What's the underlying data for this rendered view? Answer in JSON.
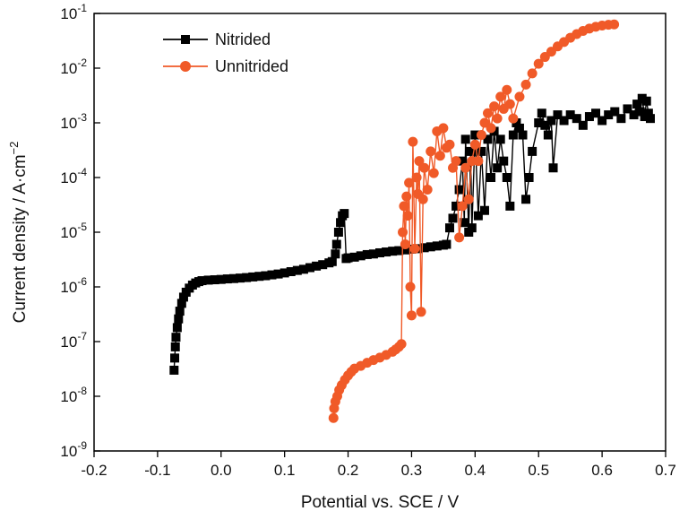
{
  "chart_data": {
    "type": "scatter",
    "xlabel": "Potential vs. SCE / V",
    "ylabel": "Current density / A·cm",
    "ylabel_sup": "−2",
    "xlim": [
      -0.2,
      0.7
    ],
    "ylim_log10": [
      -9,
      -1
    ],
    "yscale": "log",
    "grid": false,
    "legend_position": "top-left",
    "x_ticks": [
      "-0.2",
      "-0.1",
      "0.0",
      "0.1",
      "0.2",
      "0.3",
      "0.4",
      "0.5",
      "0.6",
      "0.7"
    ],
    "y_ticks": [
      {
        "base": "10",
        "exp": "-9"
      },
      {
        "base": "10",
        "exp": "-8"
      },
      {
        "base": "10",
        "exp": "-7"
      },
      {
        "base": "10",
        "exp": "-6"
      },
      {
        "base": "10",
        "exp": "-5"
      },
      {
        "base": "10",
        "exp": "-4"
      },
      {
        "base": "10",
        "exp": "-3"
      },
      {
        "base": "10",
        "exp": "-2"
      },
      {
        "base": "10",
        "exp": "-1"
      }
    ],
    "series": [
      {
        "name": "Nitrided",
        "color": "#000000",
        "marker": "square",
        "points": [
          [
            -0.074,
            3e-08
          ],
          [
            -0.073,
            5e-08
          ],
          [
            -0.072,
            8e-08
          ],
          [
            -0.071,
            1.2e-07
          ],
          [
            -0.069,
            1.8e-07
          ],
          [
            -0.067,
            2.6e-07
          ],
          [
            -0.065,
            3.6e-07
          ],
          [
            -0.062,
            5e-07
          ],
          [
            -0.059,
            6.5e-07
          ],
          [
            -0.055,
            8e-07
          ],
          [
            -0.05,
            9.5e-07
          ],
          [
            -0.045,
            1.08e-06
          ],
          [
            -0.04,
            1.18e-06
          ],
          [
            -0.035,
            1.25e-06
          ],
          [
            -0.03,
            1.3e-06
          ],
          [
            -0.02,
            1.33e-06
          ],
          [
            -0.01,
            1.35e-06
          ],
          [
            0.0,
            1.37e-06
          ],
          [
            0.01,
            1.4e-06
          ],
          [
            0.02,
            1.42e-06
          ],
          [
            0.03,
            1.45e-06
          ],
          [
            0.04,
            1.48e-06
          ],
          [
            0.05,
            1.52e-06
          ],
          [
            0.06,
            1.56e-06
          ],
          [
            0.07,
            1.6e-06
          ],
          [
            0.08,
            1.66e-06
          ],
          [
            0.09,
            1.72e-06
          ],
          [
            0.1,
            1.8e-06
          ],
          [
            0.11,
            1.9e-06
          ],
          [
            0.12,
            2e-06
          ],
          [
            0.13,
            2.1e-06
          ],
          [
            0.14,
            2.25e-06
          ],
          [
            0.15,
            2.4e-06
          ],
          [
            0.16,
            2.55e-06
          ],
          [
            0.17,
            2.75e-06
          ],
          [
            0.175,
            2.9e-06
          ],
          [
            0.18,
            4e-06
          ],
          [
            0.182,
            6e-06
          ],
          [
            0.185,
            1e-05
          ],
          [
            0.188,
            1.5e-05
          ],
          [
            0.191,
            2e-05
          ],
          [
            0.194,
            2.2e-05
          ],
          [
            0.197,
            3.3e-06
          ],
          [
            0.2,
            3.4e-06
          ],
          [
            0.21,
            3.5e-06
          ],
          [
            0.22,
            3.7e-06
          ],
          [
            0.23,
            3.9e-06
          ],
          [
            0.24,
            4e-06
          ],
          [
            0.25,
            4.2e-06
          ],
          [
            0.26,
            4.35e-06
          ],
          [
            0.27,
            4.5e-06
          ],
          [
            0.28,
            4.6e-06
          ],
          [
            0.29,
            4.75e-06
          ],
          [
            0.3,
            4.9e-06
          ],
          [
            0.31,
            5e-06
          ],
          [
            0.32,
            5.2e-06
          ],
          [
            0.33,
            5.4e-06
          ],
          [
            0.34,
            5.6e-06
          ],
          [
            0.35,
            5.8e-06
          ],
          [
            0.355,
            6e-06
          ],
          [
            0.36,
            1.2e-05
          ],
          [
            0.365,
            1.8e-05
          ],
          [
            0.37,
            3e-05
          ],
          [
            0.375,
            6e-05
          ],
          [
            0.38,
            0.0002
          ],
          [
            0.383,
            1.5e-05
          ],
          [
            0.385,
            0.0005
          ],
          [
            0.39,
            1e-05
          ],
          [
            0.393,
            0.0003
          ],
          [
            0.395,
            1.2e-05
          ],
          [
            0.4,
            0.0006
          ],
          [
            0.405,
            2e-05
          ],
          [
            0.41,
            0.0003
          ],
          [
            0.415,
            2.5e-05
          ],
          [
            0.42,
            0.0005
          ],
          [
            0.425,
            0.0001
          ],
          [
            0.43,
            0.0007
          ],
          [
            0.435,
            0.00015
          ],
          [
            0.44,
            0.0005
          ],
          [
            0.445,
            0.0002
          ],
          [
            0.45,
            0.0001
          ],
          [
            0.455,
            3e-05
          ],
          [
            0.46,
            0.0006
          ],
          [
            0.465,
            0.001
          ],
          [
            0.47,
            0.0008
          ],
          [
            0.475,
            0.0006
          ],
          [
            0.48,
            4e-05
          ],
          [
            0.485,
            0.0001
          ],
          [
            0.49,
            0.0003
          ],
          [
            0.5,
            0.001
          ],
          [
            0.505,
            0.0015
          ],
          [
            0.51,
            0.0009
          ],
          [
            0.515,
            0.0006
          ],
          [
            0.52,
            0.0011
          ],
          [
            0.523,
            0.00015
          ],
          [
            0.53,
            0.0014
          ],
          [
            0.54,
            0.0011
          ],
          [
            0.55,
            0.0014
          ],
          [
            0.56,
            0.0012
          ],
          [
            0.57,
            0.0009
          ],
          [
            0.58,
            0.0013
          ],
          [
            0.59,
            0.0015
          ],
          [
            0.6,
            0.0011
          ],
          [
            0.61,
            0.0014
          ],
          [
            0.62,
            0.0016
          ],
          [
            0.63,
            0.0012
          ],
          [
            0.64,
            0.0018
          ],
          [
            0.65,
            0.0014
          ],
          [
            0.655,
            0.0022
          ],
          [
            0.66,
            0.0016
          ],
          [
            0.663,
            0.0028
          ],
          [
            0.667,
            0.0013
          ],
          [
            0.67,
            0.0025
          ],
          [
            0.673,
            0.0015
          ],
          [
            0.676,
            0.0012
          ]
        ]
      },
      {
        "name": "Unnitrided",
        "color": "#f05a28",
        "marker": "circle",
        "points": [
          [
            0.177,
            4e-09
          ],
          [
            0.178,
            6e-09
          ],
          [
            0.18,
            8e-09
          ],
          [
            0.183,
            1e-08
          ],
          [
            0.186,
            1.3e-08
          ],
          [
            0.19,
            1.6e-08
          ],
          [
            0.195,
            2e-08
          ],
          [
            0.2,
            2.4e-08
          ],
          [
            0.205,
            2.8e-08
          ],
          [
            0.21,
            3.2e-08
          ],
          [
            0.22,
            3.6e-08
          ],
          [
            0.23,
            4.1e-08
          ],
          [
            0.24,
            4.6e-08
          ],
          [
            0.25,
            5.1e-08
          ],
          [
            0.26,
            5.7e-08
          ],
          [
            0.27,
            6.5e-08
          ],
          [
            0.275,
            7.2e-08
          ],
          [
            0.28,
            8e-08
          ],
          [
            0.284,
            9e-08
          ],
          [
            0.286,
            1e-05
          ],
          [
            0.288,
            3e-05
          ],
          [
            0.29,
            6e-06
          ],
          [
            0.292,
            4.5e-05
          ],
          [
            0.294,
            2e-05
          ],
          [
            0.296,
            8e-05
          ],
          [
            0.298,
            1e-06
          ],
          [
            0.3,
            3e-07
          ],
          [
            0.302,
            0.00045
          ],
          [
            0.305,
            5e-06
          ],
          [
            0.308,
            0.0001
          ],
          [
            0.31,
            5e-05
          ],
          [
            0.312,
            0.0002
          ],
          [
            0.315,
            3.5e-07
          ],
          [
            0.318,
            4e-05
          ],
          [
            0.32,
            0.00015
          ],
          [
            0.325,
            6e-05
          ],
          [
            0.33,
            0.0003
          ],
          [
            0.335,
            0.00012
          ],
          [
            0.34,
            0.0007
          ],
          [
            0.345,
            0.00025
          ],
          [
            0.35,
            0.0008
          ],
          [
            0.355,
            0.00035
          ],
          [
            0.36,
            0.0004
          ],
          [
            0.365,
            0.00015
          ],
          [
            0.37,
            0.0002
          ],
          [
            0.375,
            8e-06
          ],
          [
            0.38,
            3e-05
          ],
          [
            0.385,
            0.00015
          ],
          [
            0.39,
            4e-05
          ],
          [
            0.395,
            0.0002
          ],
          [
            0.4,
            0.0004
          ],
          [
            0.405,
            0.0002
          ],
          [
            0.41,
            0.0006
          ],
          [
            0.415,
            0.001
          ],
          [
            0.42,
            0.0015
          ],
          [
            0.425,
            0.0008
          ],
          [
            0.43,
            0.002
          ],
          [
            0.435,
            0.0012
          ],
          [
            0.44,
            0.003
          ],
          [
            0.445,
            0.0018
          ],
          [
            0.45,
            0.004
          ],
          [
            0.455,
            0.0022
          ],
          [
            0.46,
            0.0012
          ],
          [
            0.47,
            0.003
          ],
          [
            0.48,
            0.005
          ],
          [
            0.49,
            0.008
          ],
          [
            0.5,
            0.012
          ],
          [
            0.51,
            0.016
          ],
          [
            0.52,
            0.02
          ],
          [
            0.53,
            0.025
          ],
          [
            0.54,
            0.03
          ],
          [
            0.55,
            0.036
          ],
          [
            0.56,
            0.042
          ],
          [
            0.57,
            0.048
          ],
          [
            0.58,
            0.053
          ],
          [
            0.59,
            0.057
          ],
          [
            0.6,
            0.06
          ],
          [
            0.61,
            0.062
          ],
          [
            0.619,
            0.063
          ]
        ]
      }
    ]
  }
}
